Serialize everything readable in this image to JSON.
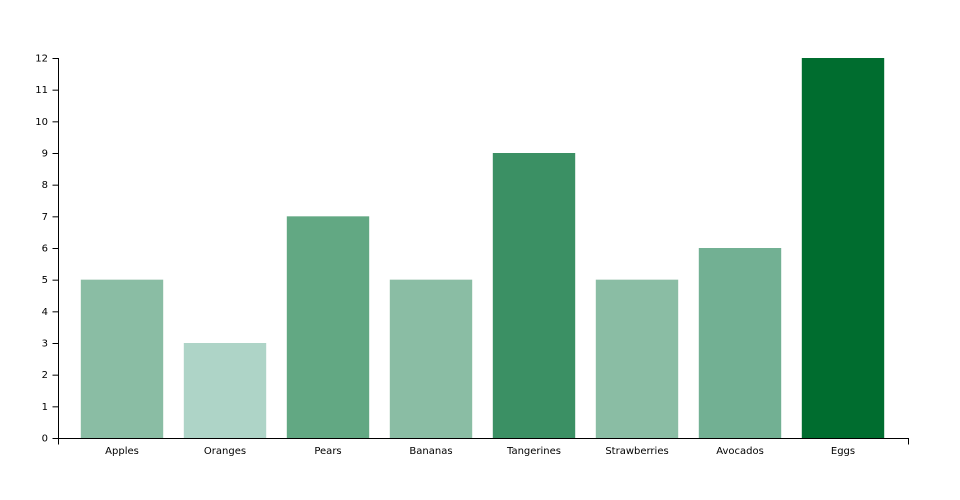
{
  "chart_data": {
    "type": "bar",
    "categories": [
      "Apples",
      "Oranges",
      "Pears",
      "Bananas",
      "Tangerines",
      "Strawberries",
      "Avocados",
      "Eggs"
    ],
    "values": [
      5,
      3,
      7,
      5,
      9,
      5,
      6,
      12
    ],
    "colors": [
      "#8abda4",
      "#aed4c7",
      "#62a883",
      "#8abda4",
      "#3b9064",
      "#8abda4",
      "#72b093",
      "#006d2f"
    ],
    "ylim": [
      0,
      12
    ],
    "yticks": [
      0,
      1,
      2,
      3,
      4,
      5,
      6,
      7,
      8,
      9,
      10,
      11,
      12
    ],
    "grid": false
  }
}
